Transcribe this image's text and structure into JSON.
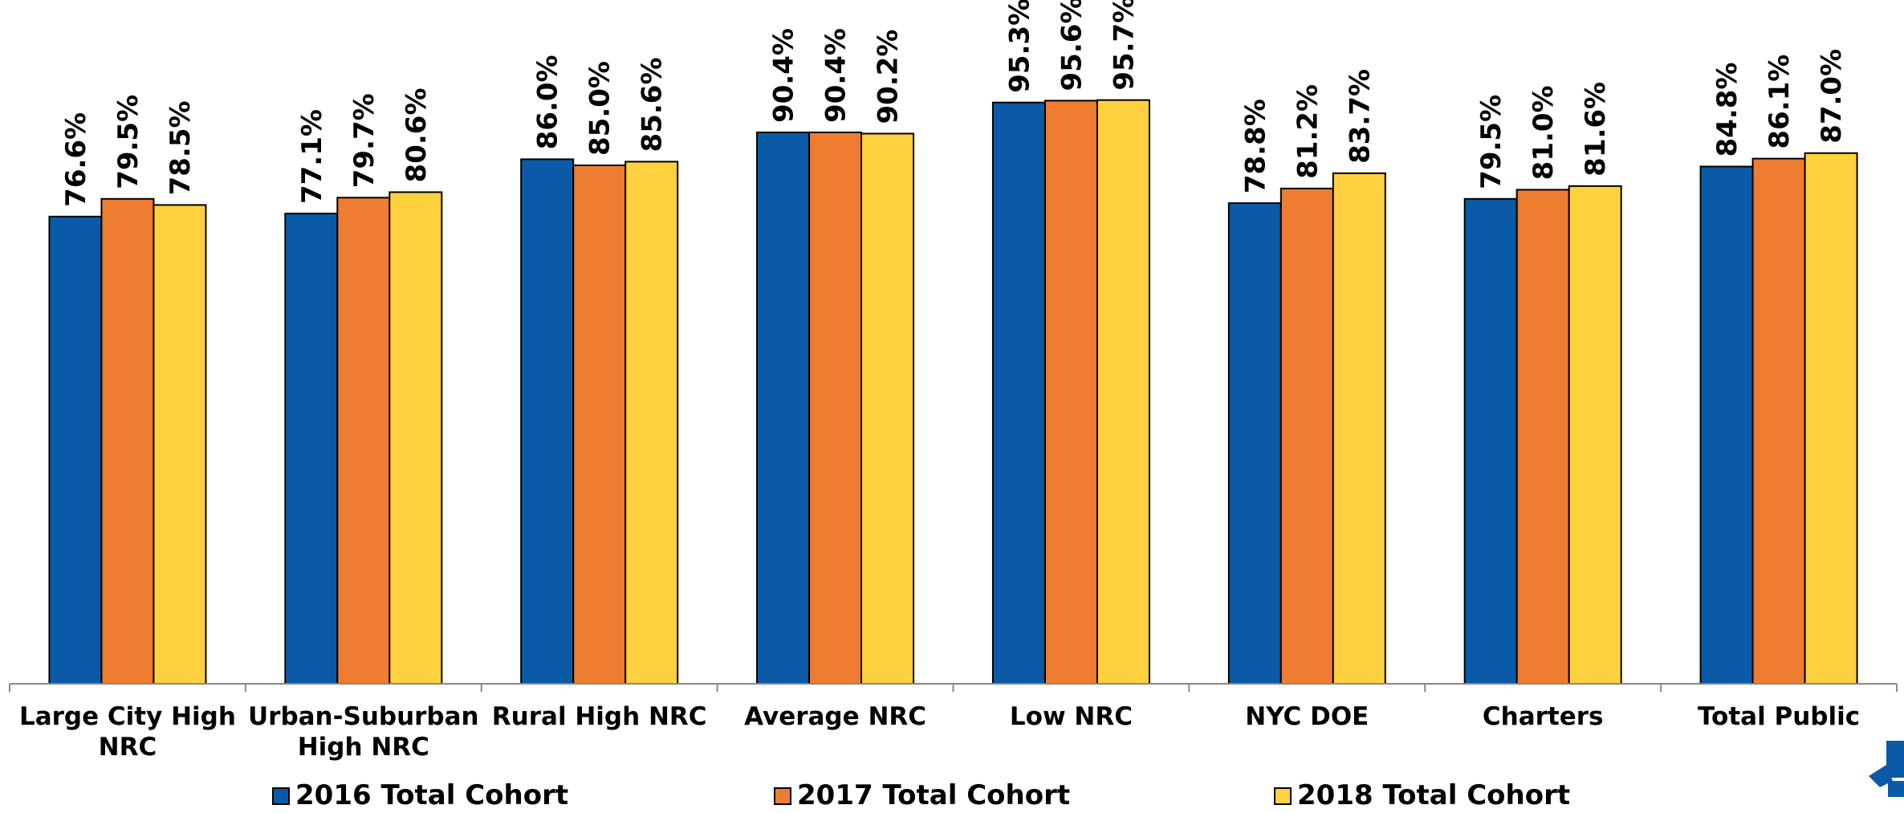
{
  "chart_data": {
    "type": "bar",
    "categories": [
      [
        "Large City High",
        "NRC"
      ],
      [
        "Urban-Suburban",
        "High NRC"
      ],
      [
        "Rural High NRC"
      ],
      [
        "Average NRC"
      ],
      [
        "Low NRC"
      ],
      [
        "NYC DOE"
      ],
      [
        "Charters"
      ],
      [
        "Total Public"
      ]
    ],
    "series": [
      {
        "name": "2016 Total Cohort",
        "color": "#0B5AA7",
        "values": [
          76.6,
          77.1,
          86.0,
          90.4,
          95.3,
          78.8,
          79.5,
          84.8
        ]
      },
      {
        "name": "2017 Total Cohort",
        "color": "#EE7D31",
        "values": [
          79.5,
          79.7,
          85.0,
          90.4,
          95.6,
          81.2,
          81.0,
          86.1
        ]
      },
      {
        "name": "2018 Total Cohort",
        "color": "#FFD13F",
        "values": [
          78.5,
          80.6,
          85.6,
          90.2,
          95.7,
          83.7,
          81.6,
          87.0
        ]
      }
    ],
    "value_format": "%",
    "legend_position": "bottom",
    "grid": false
  },
  "logo": {
    "color": "#0B5AA7",
    "icon": "logo-mark-icon"
  }
}
